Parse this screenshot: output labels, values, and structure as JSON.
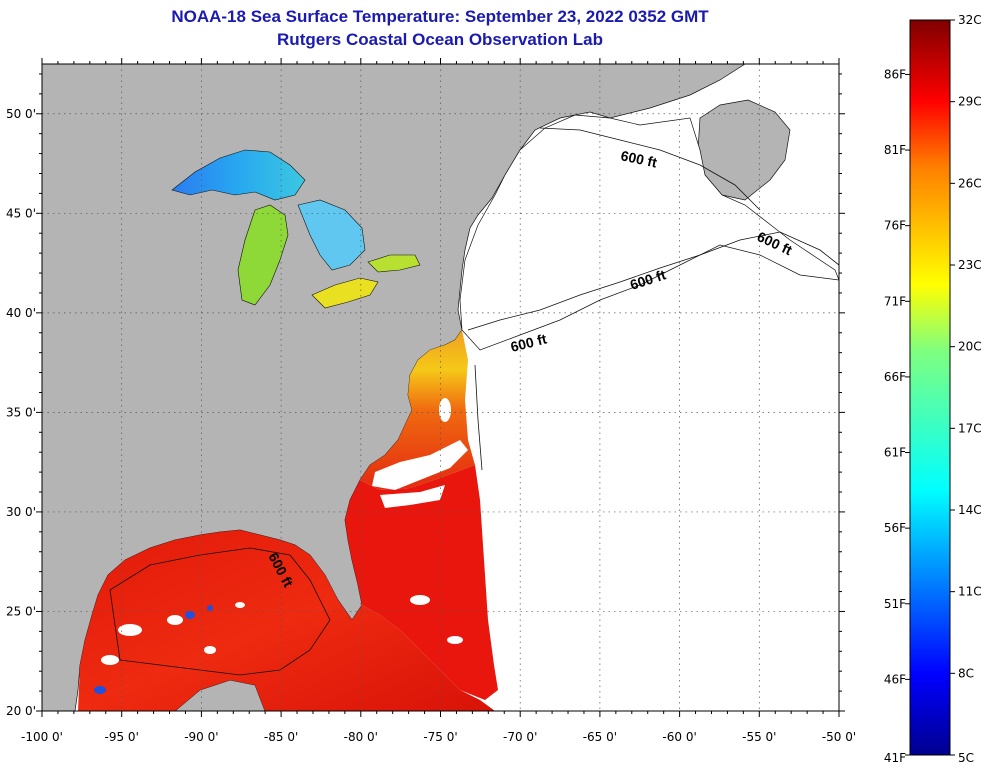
{
  "title": "NOAA-18 Sea Surface Temperature:  September 23, 2022 0352 GMT",
  "subtitle": "Rutgers Coastal Ocean Observation Lab",
  "map": {
    "lon_range": [
      -100,
      -50
    ],
    "lat_range": [
      20,
      52.5
    ],
    "lon_ticks": [
      {
        "value": -100,
        "label": "-100 0'"
      },
      {
        "value": -95,
        "label": "-95 0'"
      },
      {
        "value": -90,
        "label": "-90 0'"
      },
      {
        "value": -85,
        "label": "-85 0'"
      },
      {
        "value": -80,
        "label": "-80 0'"
      },
      {
        "value": -75,
        "label": "-75 0'"
      },
      {
        "value": -70,
        "label": "-70 0'"
      },
      {
        "value": -65,
        "label": "-65 0'"
      },
      {
        "value": -60,
        "label": "-60 0'"
      },
      {
        "value": -55,
        "label": "-55 0'"
      },
      {
        "value": -50,
        "label": "-50 0'"
      }
    ],
    "lat_ticks": [
      {
        "value": 20,
        "label": "20 0'"
      },
      {
        "value": 25,
        "label": "25 0'"
      },
      {
        "value": 30,
        "label": "30 0'"
      },
      {
        "value": 35,
        "label": "35 0'"
      },
      {
        "value": 40,
        "label": "40 0'"
      },
      {
        "value": 45,
        "label": "45 0'"
      },
      {
        "value": 50,
        "label": "50 0'"
      }
    ],
    "contour_labels": [
      "600 ft",
      "600 ft",
      "600 ft",
      "600 ft",
      "600 ft"
    ],
    "colors": {
      "land": "#b4b4b4",
      "no_data": "#ffffff",
      "warm_sea": "#e8160c",
      "grid": "#555555"
    }
  },
  "colorbar": {
    "celsius_labels": [
      "32C",
      "29C",
      "26C",
      "23C",
      "20C",
      "17C",
      "14C",
      "11C",
      "8C",
      "5C"
    ],
    "fahrenheit_labels": [
      "86F",
      "81F",
      "76F",
      "71F",
      "66F",
      "61F",
      "56F",
      "51F",
      "46F",
      "41F"
    ],
    "range_c": [
      5,
      32
    ],
    "range_f": [
      41,
      89.6
    ]
  }
}
